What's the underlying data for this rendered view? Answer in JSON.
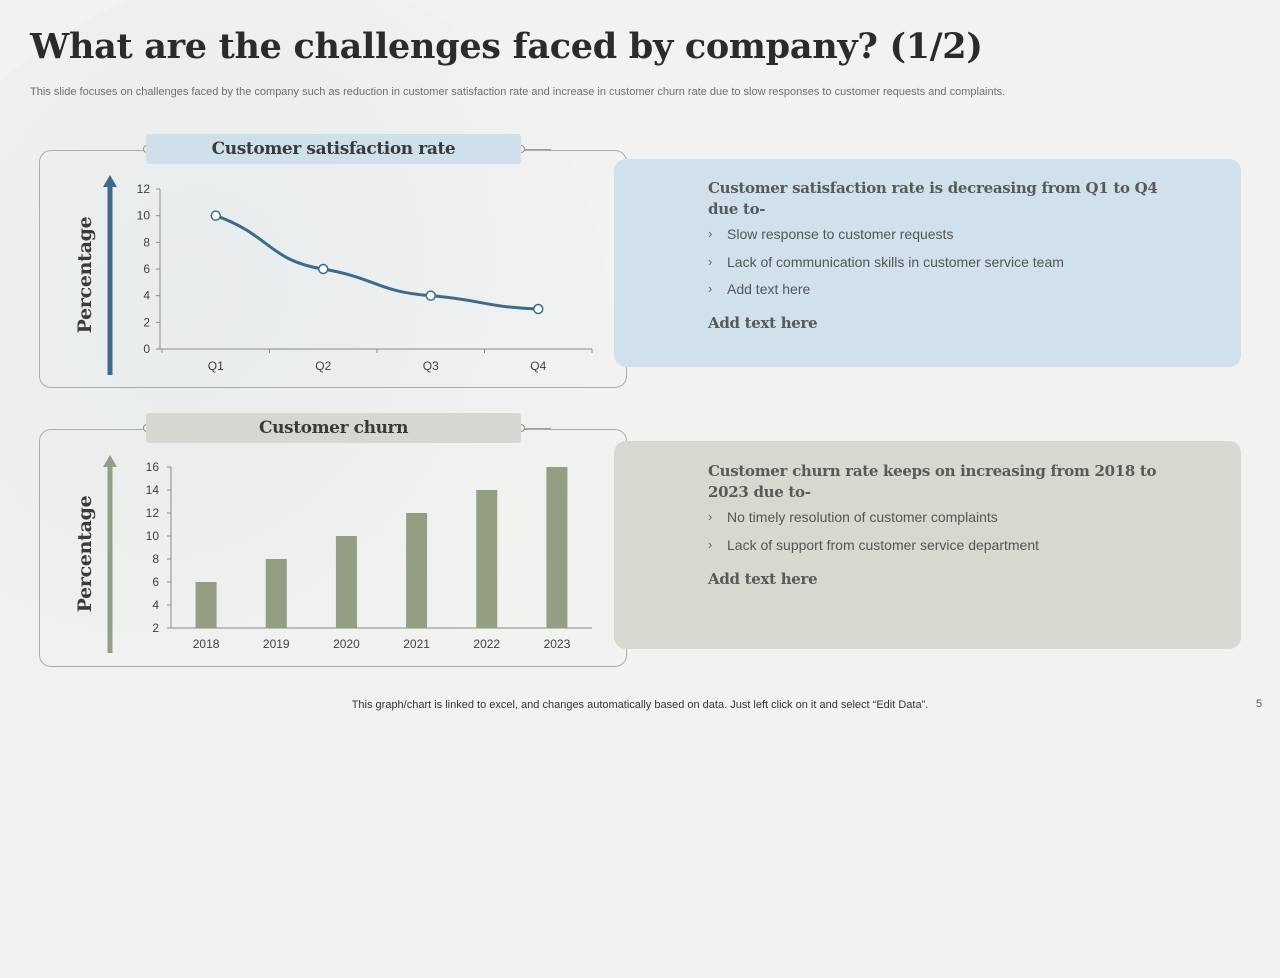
{
  "slide": {
    "title": "What are the challenges faced by company? (1/2)",
    "subtitle": "This slide focuses on challenges faced by the company such as reduction in customer satisfaction rate and increase in customer churn rate due to slow responses to customer requests and complaints.",
    "footer_note": "This graph/chart is linked to excel, and changes automatically based on data. Just left click on it and select “Edit Data”.",
    "page_number": "5"
  },
  "colors": {
    "line_series": "#3d6b89",
    "bar_series": "#949e83",
    "satisfaction_panel": "#d0e1ec",
    "churn_panel": "#d5d9d0",
    "satisfaction_label": "#cfe0ea",
    "churn_label": "#d4d8d0"
  },
  "chart_data": [
    {
      "type": "line",
      "title": "Customer satisfaction rate",
      "xlabel": "",
      "ylabel": "Percentage",
      "categories": [
        "Q1",
        "Q2",
        "Q3",
        "Q4"
      ],
      "values": [
        10,
        6,
        4,
        3
      ],
      "ylim": [
        0,
        12
      ],
      "yticks": [
        0,
        2,
        4,
        6,
        8,
        10,
        12
      ],
      "grid": false,
      "legend": "none"
    },
    {
      "type": "bar",
      "title": "Customer churn",
      "xlabel": "",
      "ylabel": "Percentage",
      "categories": [
        "2018",
        "2019",
        "2020",
        "2021",
        "2022",
        "2023"
      ],
      "values": [
        6,
        8,
        10,
        12,
        14,
        16
      ],
      "ylim": [
        2,
        16
      ],
      "yticks": [
        2,
        4,
        6,
        8,
        10,
        12,
        14,
        16
      ],
      "grid": false,
      "legend": "none"
    }
  ],
  "panels": {
    "satisfaction": {
      "heading": "Customer satisfaction rate is decreasing from Q1 to Q4 due to-",
      "bullets": [
        "Slow response to customer requests",
        "Lack of communication  skills in customer service team",
        "Add text here"
      ],
      "add_text": "Add text here"
    },
    "churn": {
      "heading": "Customer churn rate keeps on increasing from 2018 to 2023 due to-",
      "bullets": [
        "No timely resolution of customer complaints",
        "Lack of support from  customer service department"
      ],
      "add_text": "Add text here"
    }
  },
  "icons": {
    "bullet": "chevron-right-icon",
    "axis_arrow": "arrow-up-icon"
  }
}
